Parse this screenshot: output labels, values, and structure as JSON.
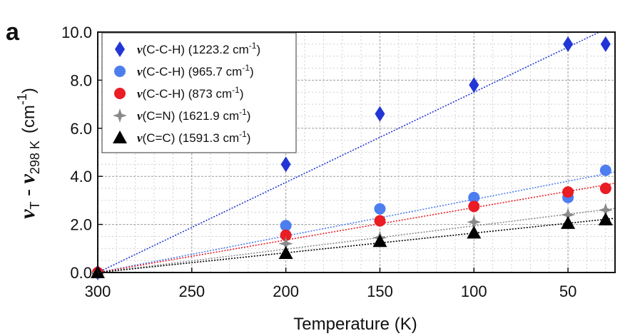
{
  "chart_data": {
    "type": "scatter",
    "panel_label": "a",
    "xlabel": "Temperature (K)",
    "ylabel": {
      "main": "ν",
      "sub_t": "T",
      "dash": " - ",
      "main2": "ν",
      "sub_298": "298 K",
      "unit": "(cm",
      "unit_sup": "-1",
      "unit_close": ")"
    },
    "xlim": [
      300,
      25
    ],
    "ylim": [
      0,
      10
    ],
    "x_ticks": [
      300,
      250,
      200,
      150,
      100,
      50
    ],
    "y_ticks": [
      "0.0",
      "2.0",
      "4.0",
      "6.0",
      "8.0",
      "10.0"
    ],
    "grid": true,
    "legend_position": "top-left",
    "series": [
      {
        "prefix": "ν",
        "name": "(C-C-H) (1223.2 cm",
        "sup": "-1",
        "suffix": ")",
        "marker": "diamond",
        "color": "#2235d6",
        "x": [
          300,
          200,
          150,
          100,
          50,
          30
        ],
        "y": [
          0.0,
          4.5,
          6.6,
          7.8,
          9.5,
          9.5
        ],
        "fit_slope": 0.0375
      },
      {
        "prefix": "ν",
        "name": "(C-C-H) (965.7 cm",
        "sup": "-1",
        "suffix": ")",
        "marker": "circle",
        "color": "#4d7ef0",
        "x": [
          300,
          200,
          150,
          100,
          50,
          30
        ],
        "y": [
          0.0,
          1.95,
          2.65,
          3.12,
          3.12,
          4.25
        ],
        "fit_slope": 0.0152
      },
      {
        "prefix": "ν",
        "name": "(C-C-H) (873 cm",
        "sup": "-1",
        "suffix": ")",
        "marker": "circle",
        "color": "#ea1c24",
        "x": [
          300,
          200,
          150,
          100,
          50,
          30
        ],
        "y": [
          0.0,
          1.55,
          2.15,
          2.75,
          3.35,
          3.5
        ],
        "fit_slope": 0.0135
      },
      {
        "prefix": "ν",
        "name": "(C=N) (1621.9 cm",
        "sup": "-1",
        "suffix": ")",
        "marker": "star",
        "color": "#8a8a8a",
        "x": [
          300,
          200,
          150,
          100,
          50,
          30
        ],
        "y": [
          0.0,
          1.2,
          1.45,
          2.1,
          2.4,
          2.6
        ],
        "fit_slope": 0.0097
      },
      {
        "prefix": "ν",
        "name": "(C=C) (1591.3 cm",
        "sup": "-1",
        "suffix": ")",
        "marker": "triangle",
        "color": "#000000",
        "x": [
          300,
          200,
          150,
          100,
          50,
          30
        ],
        "y": [
          0.0,
          0.8,
          1.3,
          1.65,
          2.05,
          2.2
        ],
        "fit_slope": 0.0082
      }
    ]
  }
}
